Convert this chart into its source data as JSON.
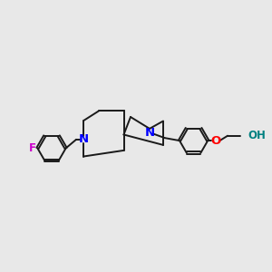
{
  "background_color": "#e8e8e8",
  "bond_color": "#1a1a1a",
  "N_color": "#0000ff",
  "O_color": "#ff0000",
  "F_color": "#cc00cc",
  "OH_color": "#008080",
  "lw": 1.4,
  "fs": 8.5,
  "xlim": [
    0,
    10
  ],
  "ylim": [
    2,
    8
  ],
  "figsize": [
    3.0,
    3.0
  ],
  "dpi": 100,
  "r_hex": 0.52
}
